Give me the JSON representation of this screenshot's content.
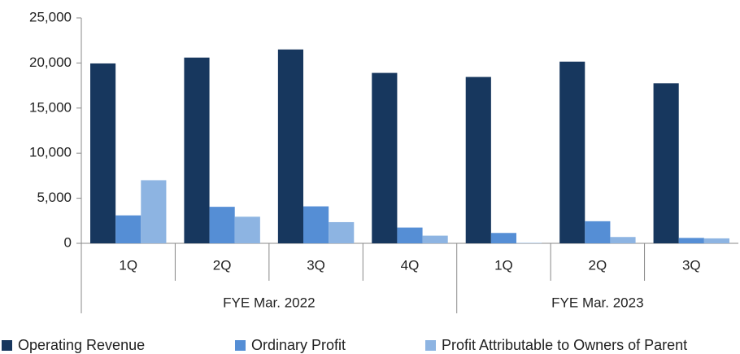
{
  "chart_data": {
    "type": "bar",
    "category_groups": [
      {
        "name": "FYE Mar. 2022",
        "categories": [
          "1Q",
          "2Q",
          "3Q",
          "4Q"
        ]
      },
      {
        "name": "FYE Mar. 2023",
        "categories": [
          "1Q",
          "2Q",
          "3Q"
        ]
      }
    ],
    "series": [
      {
        "name": "Operating Revenue",
        "color": "#17375e",
        "values": [
          19950,
          20600,
          21500,
          18900,
          18450,
          20150,
          17750
        ]
      },
      {
        "name": "Ordinary Profit",
        "color": "#558ed5",
        "values": [
          3100,
          4050,
          4100,
          1750,
          1150,
          2450,
          600
        ]
      },
      {
        "name": "Profit Attributable to Owners of Parent",
        "color": "#8db4e2",
        "values": [
          7000,
          2950,
          2350,
          850,
          50,
          700,
          550
        ]
      }
    ],
    "ylim": [
      0,
      25000
    ],
    "yticks": [
      0,
      {
        "value": 5000,
        "label": "5,000"
      },
      {
        "value": 10000,
        "label": "10,000"
      },
      {
        "value": 15000,
        "label": "15,000"
      },
      {
        "value": 20000,
        "label": "20,000"
      },
      {
        "value": 25000,
        "label": "25,000"
      }
    ],
    "legend": "bottom"
  }
}
